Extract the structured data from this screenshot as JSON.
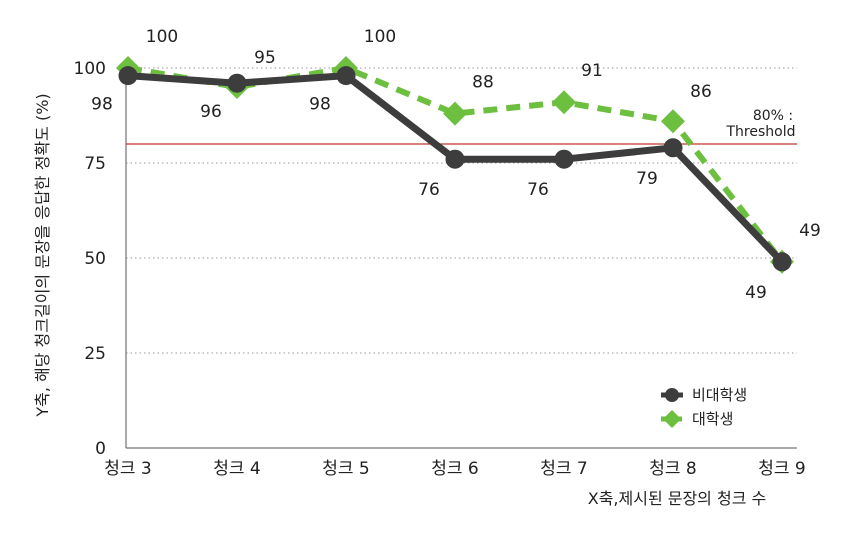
{
  "chart_data": {
    "type": "line",
    "categories": [
      "청크 3",
      "청크 4",
      "청크 5",
      "청크 6",
      "청크 7",
      "청크 8",
      "청크 9"
    ],
    "series": [
      {
        "name": "비대학생",
        "values": [
          98,
          96,
          98,
          76,
          76,
          79,
          49
        ],
        "color": "#3d3d3d",
        "marker": "circle",
        "line_style": "solid"
      },
      {
        "name": "대학생",
        "values": [
          100,
          95,
          100,
          88,
          91,
          86,
          49
        ],
        "color": "#6cbf3f",
        "marker": "diamond",
        "line_style": "dashed"
      }
    ],
    "xlabel": "X축,제시된 문장의 청크 수",
    "ylabel": "Y축, 해당 청크길이의 문장을 응답한 정확도 (%)",
    "ylim": [
      0,
      100
    ],
    "yticks": [
      0,
      25,
      50,
      75,
      100
    ],
    "grid": "horizontal dotted",
    "legend_position": "bottom-right",
    "threshold": {
      "value": 80,
      "label_line1": "80% :",
      "label_line2": "Threshold",
      "color": "#c0392b"
    }
  }
}
